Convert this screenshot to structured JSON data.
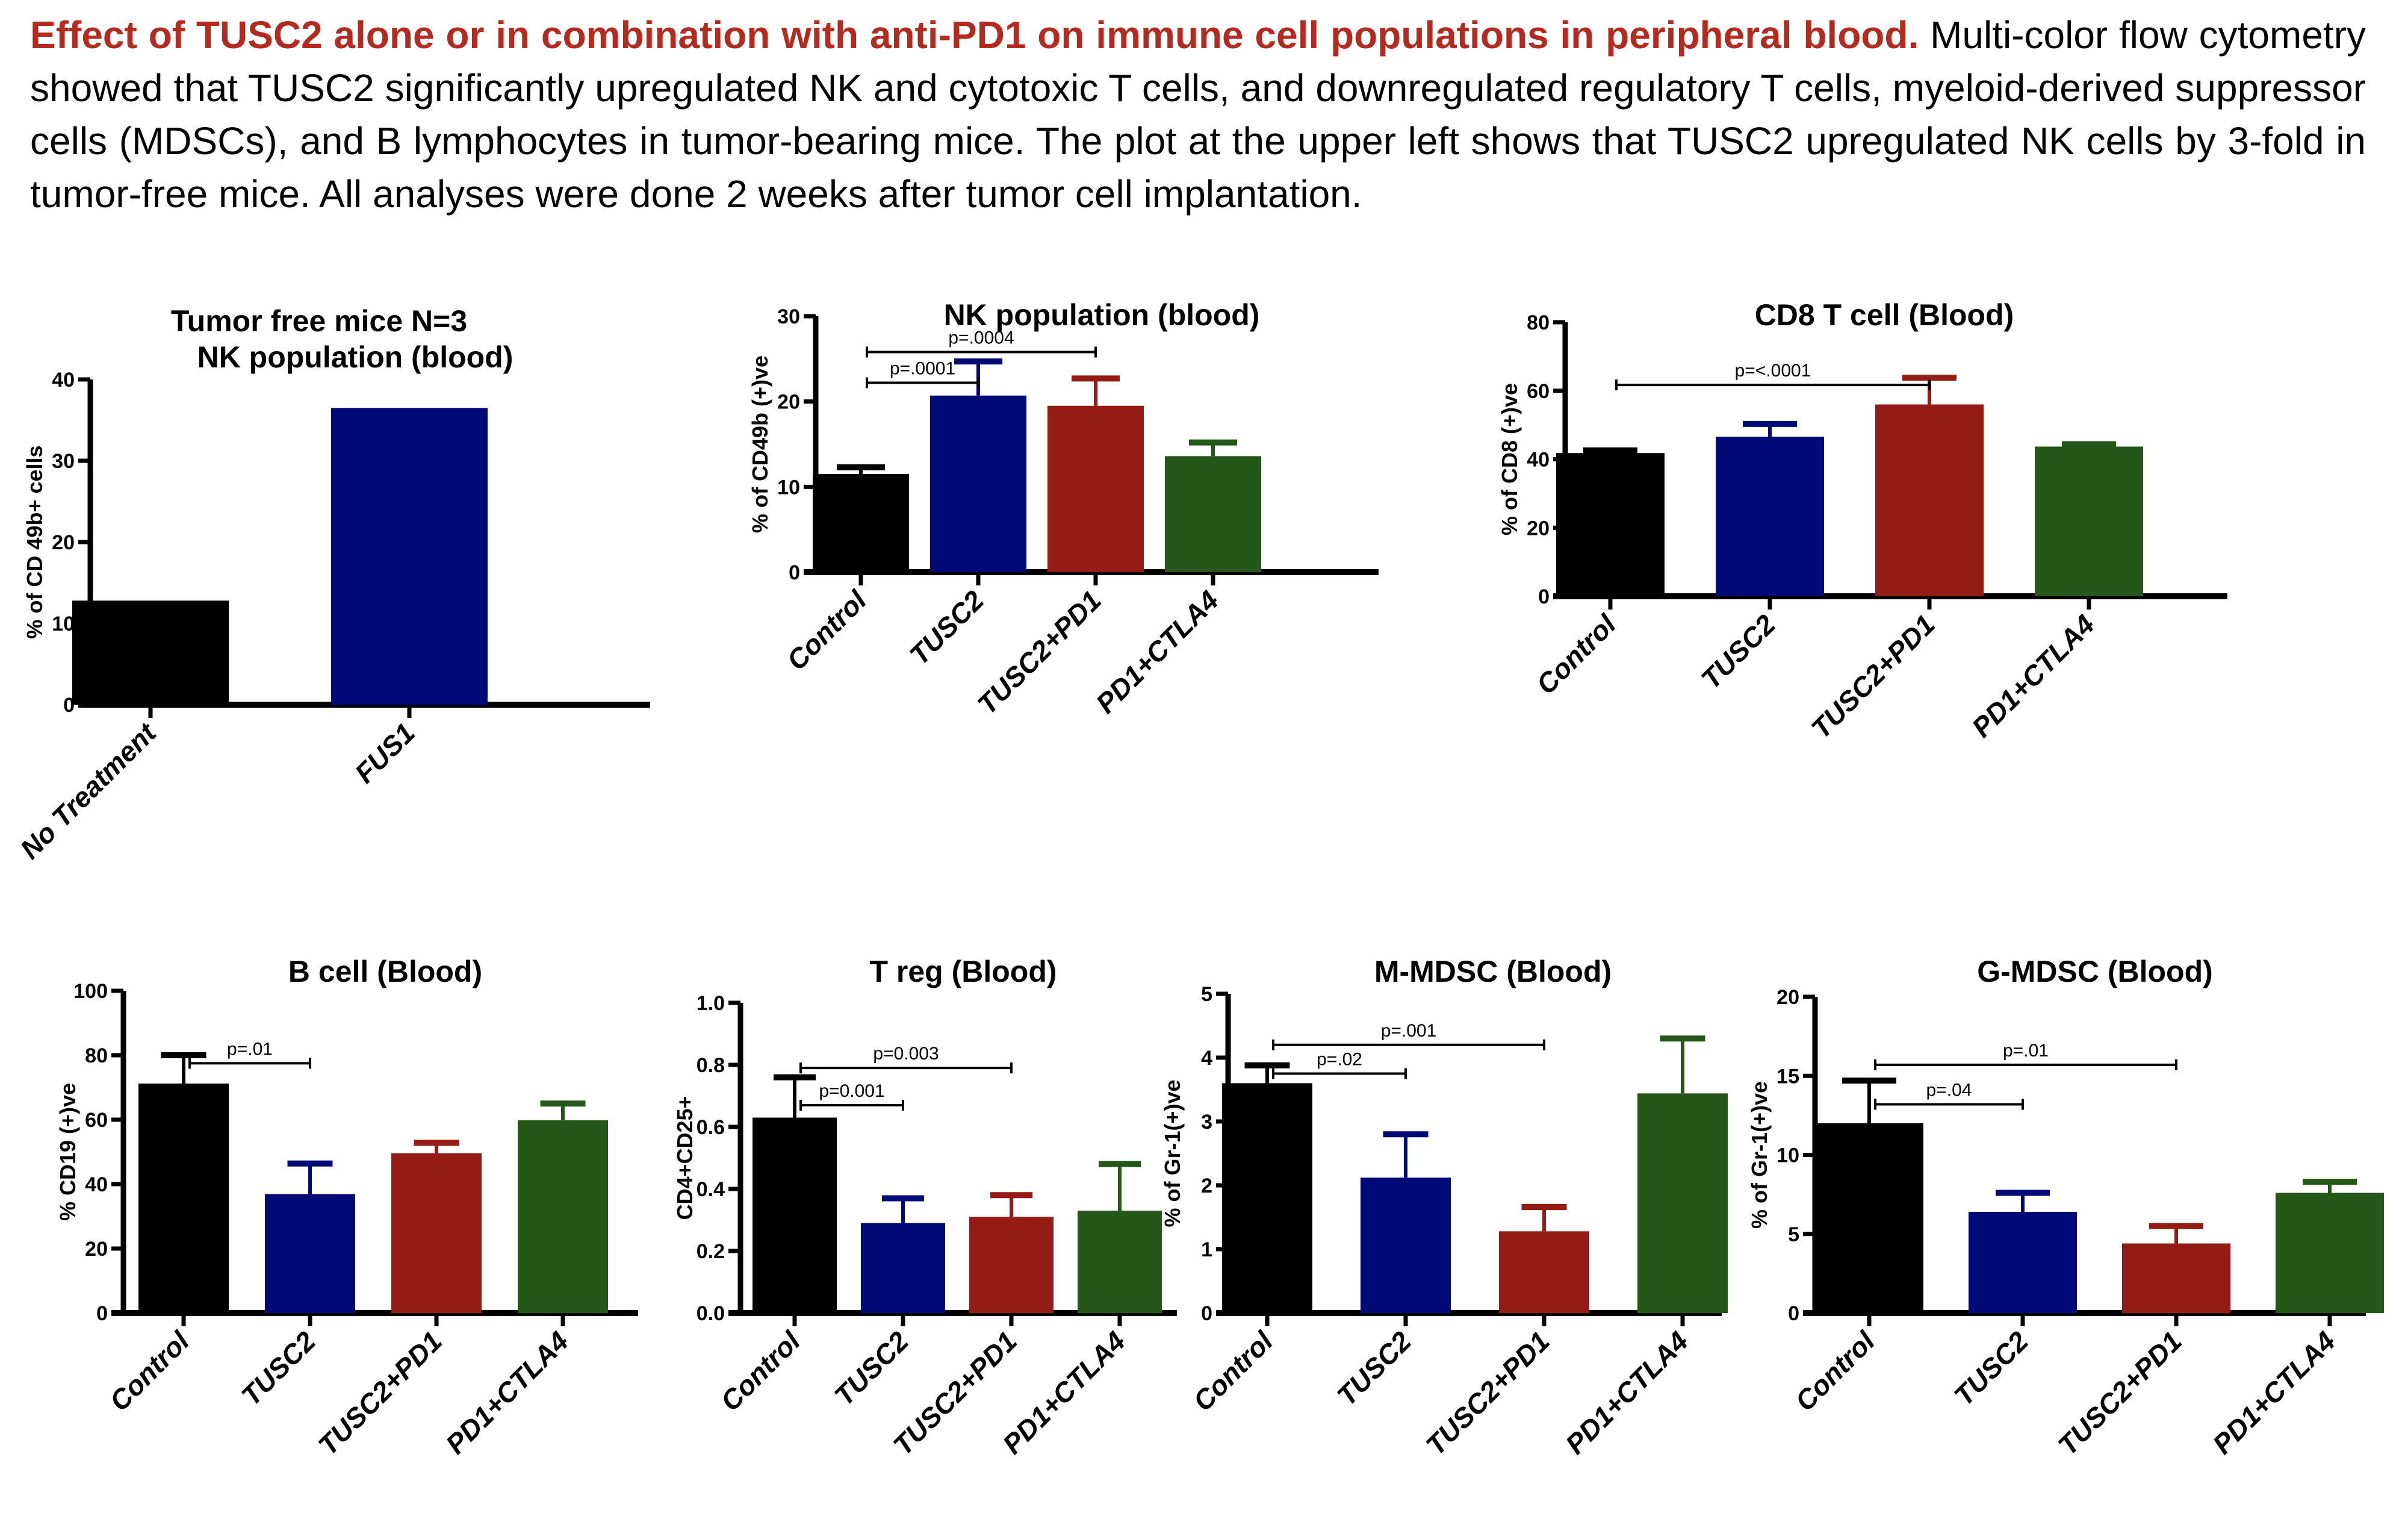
{
  "caption": {
    "lead": "Effect of TUSC2 alone or in combination with anti-PD1 on immune cell populations in peripheral blood.",
    "body": " Multi-color flow cytometry showed that TUSC2 significantly upregulated NK and cytotoxic T cells, and downregulated regulatory T cells, myeloid-derived suppressor cells (MDSCs), and B lymphocytes in tumor-bearing mice. The plot at the upper left shows that TUSC2 upregulated NK cells by 3-fold in tumor-free mice. All analyses were done 2 weeks after tumor cell implantation."
  },
  "colors": {
    "control": "#000000",
    "tusc2": "#020a78",
    "tusc2_pd1": "#951c15",
    "pd1_ctla4": "#255818",
    "caption_lead": "#b52a1e"
  },
  "chart_data": [
    {
      "id": "tumor-free-nk",
      "type": "bar",
      "supertitle": "Tumor free mice N=3",
      "title": "NK population (blood)",
      "ylabel": "% of CD 49b+ cells",
      "xlabel": "",
      "ylim": [
        0,
        40
      ],
      "yticks": [
        "0",
        "10",
        "20",
        "30",
        "40"
      ],
      "categories": [
        "No Treatment",
        "FUS1"
      ],
      "values": [
        12.8,
        36.5
      ],
      "errors": [
        null,
        null
      ],
      "bar_colors": [
        "#000000",
        "#020a78"
      ],
      "comparisons": []
    },
    {
      "id": "nk-blood",
      "type": "bar",
      "title": "NK population (blood)",
      "ylabel": "% of CD49b (+)ve",
      "ylim": [
        0,
        30
      ],
      "yticks": [
        "0",
        "10",
        "20",
        "30"
      ],
      "categories": [
        "Control",
        "TUSC2",
        "TUSC2+PD1",
        "PD1+CTLA4"
      ],
      "values": [
        11.5,
        20.7,
        19.5,
        13.6
      ],
      "errors": [
        0.8,
        4.0,
        3.2,
        1.6
      ],
      "bar_colors": [
        "#000000",
        "#020a78",
        "#951c15",
        "#255818"
      ],
      "comparisons": [
        {
          "from": 0,
          "to": 1,
          "label": "p=.0001",
          "y": 22.2
        },
        {
          "from": 0,
          "to": 2,
          "label": "p=.0004",
          "y": 25.8
        }
      ]
    },
    {
      "id": "cd8-blood",
      "type": "bar",
      "title": "CD8 T cell (Blood)",
      "ylabel": "% of CD8 (+)ve",
      "ylim": [
        0,
        80
      ],
      "yticks": [
        "0",
        "20",
        "40",
        "60",
        "80"
      ],
      "categories": [
        "Control",
        "TUSC2",
        "TUSC2+PD1",
        "PD1+CTLA4"
      ],
      "values": [
        41.8,
        46.6,
        56.0,
        43.7
      ],
      "errors": [
        0.8,
        3.7,
        7.8,
        0.7
      ],
      "bar_colors": [
        "#000000",
        "#020a78",
        "#951c15",
        "#255818"
      ],
      "comparisons": [
        {
          "from": 0,
          "to": 2,
          "label": "p=<.0001",
          "y": 61.7
        }
      ]
    },
    {
      "id": "bcell-blood",
      "type": "bar",
      "title": "B cell (Blood)",
      "ylabel": "% CD19 (+)ve",
      "ylim": [
        0,
        100
      ],
      "yticks": [
        "0",
        "20",
        "40",
        "60",
        "80",
        "100"
      ],
      "categories": [
        "Control",
        "TUSC2",
        "TUSC2+PD1",
        "PD1+CTLA4"
      ],
      "values": [
        71.2,
        36.9,
        49.6,
        59.8
      ],
      "errors": [
        8.8,
        9.5,
        3.2,
        5.2
      ],
      "bar_colors": [
        "#000000",
        "#020a78",
        "#951c15",
        "#255818"
      ],
      "comparisons": [
        {
          "from": 0,
          "to": 1,
          "label": "p=.01",
          "y": 77.5
        }
      ]
    },
    {
      "id": "treg-blood",
      "type": "bar",
      "title": "T reg (Blood)",
      "ylabel": "CD4+CD25+",
      "ylim": [
        0,
        1.0
      ],
      "yticks": [
        "0.0",
        "0.2",
        "0.4",
        "0.6",
        "0.8",
        "1.0"
      ],
      "categories": [
        "Control",
        "TUSC2",
        "TUSC2+PD1",
        "PD1+CTLA4"
      ],
      "values": [
        0.63,
        0.29,
        0.31,
        0.33
      ],
      "errors": [
        0.13,
        0.08,
        0.07,
        0.15
      ],
      "bar_colors": [
        "#000000",
        "#020a78",
        "#951c15",
        "#255818"
      ],
      "comparisons": [
        {
          "from": 0,
          "to": 1,
          "label": "p=0.001",
          "y": 0.67
        },
        {
          "from": 0,
          "to": 2,
          "label": "p=0.003",
          "y": 0.79
        }
      ]
    },
    {
      "id": "mmdsc-blood",
      "type": "bar",
      "title": "M-MDSC (Blood)",
      "ylabel": "% of Gr-1(+)ve",
      "ylim": [
        0,
        5
      ],
      "yticks": [
        "0",
        "1",
        "2",
        "3",
        "4",
        "5"
      ],
      "categories": [
        "Control",
        "TUSC2",
        "TUSC2+PD1",
        "PD1+CTLA4"
      ],
      "values": [
        3.6,
        2.12,
        1.28,
        3.44
      ],
      "errors": [
        0.28,
        0.68,
        0.38,
        0.86
      ],
      "bar_colors": [
        "#000000",
        "#020a78",
        "#951c15",
        "#255818"
      ],
      "comparisons": [
        {
          "from": 0,
          "to": 1,
          "label": "p=.02",
          "y": 3.75
        },
        {
          "from": 0,
          "to": 2,
          "label": "p=.001",
          "y": 4.2
        }
      ]
    },
    {
      "id": "gmdsc-blood",
      "type": "bar",
      "title": "G-MDSC (Blood)",
      "ylabel": "% of Gr-1(+)ve",
      "ylim": [
        0,
        20
      ],
      "yticks": [
        "0",
        "5",
        "10",
        "15",
        "20"
      ],
      "categories": [
        "Control",
        "TUSC2",
        "TUSC2+PD1",
        "PD1+CTLA4"
      ],
      "values": [
        12.0,
        6.4,
        4.4,
        7.6
      ],
      "errors": [
        2.7,
        1.2,
        1.1,
        0.7
      ],
      "bar_colors": [
        "#000000",
        "#020a78",
        "#951c15",
        "#255818"
      ],
      "comparisons": [
        {
          "from": 0,
          "to": 1,
          "label": "p=.04",
          "y": 13.2
        },
        {
          "from": 0,
          "to": 2,
          "label": "p=.01",
          "y": 15.7
        }
      ]
    }
  ]
}
